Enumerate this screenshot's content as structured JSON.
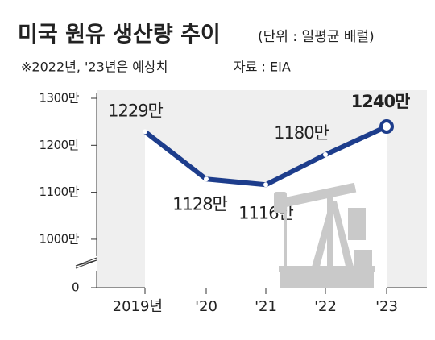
{
  "chart_data": {
    "type": "line",
    "title": "미국 원유 생산량 추이",
    "subtitle": "(단위 : 일평균 배럴)",
    "note": "※2022년, '23년은 예상치",
    "source": "자료 : EIA",
    "categories": [
      "2019년",
      "'20",
      "'21",
      "'22",
      "'23"
    ],
    "values": [
      1229,
      1128,
      1116,
      1180,
      1240
    ],
    "value_labels": [
      "1229만",
      "1128만",
      "1116만",
      "1180만",
      "1240만"
    ],
    "color": "#1d3d8c",
    "ylim": [
      897,
      1300
    ],
    "yticks": [
      {
        "value": 0,
        "label": "0"
      },
      {
        "value": 1000,
        "label": "1000만"
      },
      {
        "value": 1100,
        "label": "1100만"
      },
      {
        "value": 1200,
        "label": "1200만"
      },
      {
        "value": 1300,
        "label": "1300만"
      }
    ],
    "axis_break": true
  }
}
